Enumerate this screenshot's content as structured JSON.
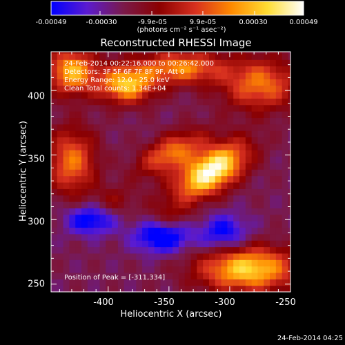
{
  "colorbar": {
    "ticks": [
      "-0.00049",
      "-0.00030",
      "-9.9e-05",
      "9.9e-05",
      "0.00030",
      "0.00049"
    ],
    "tick_values": [
      -0.00049,
      -0.0003,
      -9.9e-05,
      9.9e-05,
      0.0003,
      0.00049
    ],
    "range": [
      -0.00049,
      0.00049
    ],
    "units": "(photons cm⁻² s⁻¹ asec⁻²)",
    "colormap": [
      "#0000ff",
      "#5b1bd0",
      "#7a1a4a",
      "#8b0000",
      "#d7301f",
      "#ff8a00",
      "#ffdd33",
      "#ffffff"
    ]
  },
  "chart_data": {
    "type": "heatmap",
    "title": "Reconstructed RHESSI Image",
    "xlabel": "Heliocentric X (arcsec)",
    "ylabel": "Heliocentric Y (arcsec)",
    "xlim": [
      -447,
      -250
    ],
    "ylim": [
      244,
      430
    ],
    "x_ticks": [
      -400,
      -350,
      -300,
      -250
    ],
    "y_ticks": [
      250,
      300,
      350,
      400
    ],
    "peak": [
      -311,
      334
    ],
    "sources": [
      {
        "x": -315,
        "y": 338,
        "sx": 22,
        "sy": 11,
        "angle": 30,
        "amp": 1.0
      },
      {
        "x": -348,
        "y": 352,
        "sx": 20,
        "sy": 9,
        "angle": 25,
        "amp": 0.55
      },
      {
        "x": -385,
        "y": 405,
        "sx": 16,
        "sy": 10,
        "angle": 0,
        "amp": 0.75
      },
      {
        "x": -430,
        "y": 415,
        "sx": 14,
        "sy": 12,
        "angle": 0,
        "amp": 0.7
      },
      {
        "x": -340,
        "y": 418,
        "sx": 24,
        "sy": 9,
        "angle": 0,
        "amp": 0.6
      },
      {
        "x": -275,
        "y": 405,
        "sx": 22,
        "sy": 14,
        "angle": 0,
        "amp": 0.55
      },
      {
        "x": -430,
        "y": 345,
        "sx": 14,
        "sy": 18,
        "angle": 0,
        "amp": 0.55
      },
      {
        "x": -285,
        "y": 262,
        "sx": 28,
        "sy": 12,
        "angle": 0,
        "amp": 0.8
      },
      {
        "x": -350,
        "y": 300,
        "sx": 14,
        "sy": 10,
        "angle": 0,
        "amp": 0.25
      },
      {
        "x": -395,
        "y": 315,
        "sx": 12,
        "sy": 8,
        "angle": 0,
        "amp": 0.2
      },
      {
        "x": -355,
        "y": 288,
        "sx": 16,
        "sy": 9,
        "angle": 0,
        "amp": -0.6
      },
      {
        "x": -415,
        "y": 300,
        "sx": 14,
        "sy": 8,
        "angle": 0,
        "amp": -0.45
      },
      {
        "x": -305,
        "y": 290,
        "sx": 14,
        "sy": 10,
        "angle": 0,
        "amp": -0.4
      }
    ]
  },
  "annotations": {
    "time_range": "24-Feb-2014 00:22:16.000 to 00:26:42.000",
    "detectors": "Detectors: 3F 5F 6F 7F 8F 9F, Att 0",
    "energy": "Energy Range: 12.0 - 25.0 keV",
    "clean": "Clean      Total counts: 1.34E+04",
    "peak": "Position of Peak = [-311,334]"
  },
  "footer": {
    "date": "24-Feb-2014 04:25"
  }
}
